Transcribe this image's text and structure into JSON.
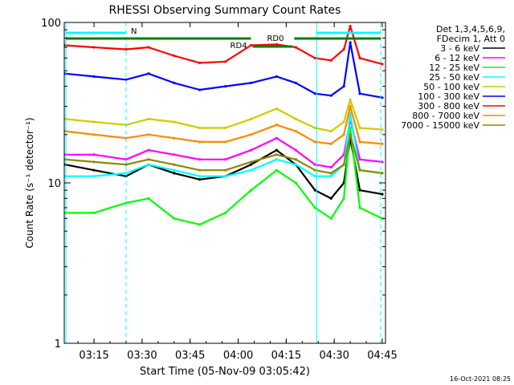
{
  "chart_data": {
    "type": "line",
    "title": "RHESSI Observing Summary Count Rates",
    "xlabel": "Start Time (05-Nov-09 03:05:42)",
    "ylabel": "Count Rate (s⁻¹ detector⁻¹)",
    "yscale": "log",
    "ylim": [
      1,
      100
    ],
    "xlim": [
      "03:05:42",
      "04:46:00"
    ],
    "xticks": [
      "03:15",
      "03:30",
      "03:45",
      "04:00",
      "04:15",
      "04:30",
      "04:45"
    ],
    "yticks": [
      "1",
      "10",
      "100"
    ],
    "grid": false,
    "legend_position": "top-right",
    "legend_header": [
      "Det 1,3,4,5,6,9,",
      "FDecim 1, Att 0"
    ],
    "series": [
      {
        "name": "3 - 6 keV",
        "color": "#000000",
        "x": [
          "03:06",
          "03:15",
          "03:25",
          "03:32",
          "03:40",
          "03:48",
          "03:56",
          "04:04",
          "04:12",
          "04:18",
          "04:24",
          "04:29",
          "04:33",
          "04:35",
          "04:38",
          "04:45"
        ],
        "values": [
          13,
          12,
          11,
          13,
          11.5,
          10.5,
          11,
          13,
          16,
          13,
          9,
          8,
          10,
          19,
          9,
          8.5
        ]
      },
      {
        "name": "6 - 12 keV",
        "color": "#ff00ff",
        "x": [
          "03:06",
          "03:15",
          "03:25",
          "03:32",
          "03:40",
          "03:48",
          "03:56",
          "04:04",
          "04:12",
          "04:18",
          "04:24",
          "04:29",
          "04:33",
          "04:35",
          "04:38",
          "04:45"
        ],
        "values": [
          15,
          15,
          14,
          16,
          15,
          14,
          14,
          16,
          19,
          16,
          13,
          12.5,
          15,
          25,
          14,
          13.5
        ]
      },
      {
        "name": "12 - 25 keV",
        "color": "#00ff00",
        "x": [
          "03:06",
          "03:15",
          "03:25",
          "03:32",
          "03:40",
          "03:48",
          "03:56",
          "04:04",
          "04:12",
          "04:18",
          "04:24",
          "04:29",
          "04:33",
          "04:35",
          "04:38",
          "04:45"
        ],
        "values": [
          6.5,
          6.5,
          7.5,
          8,
          6,
          5.5,
          6.5,
          9,
          12,
          10,
          7,
          6,
          8,
          22,
          7,
          6
        ]
      },
      {
        "name": "25 - 50 keV",
        "color": "#00ffff",
        "x": [
          "03:06",
          "03:15",
          "03:25",
          "03:32",
          "03:40",
          "03:48",
          "03:56",
          "04:04",
          "04:12",
          "04:18",
          "04:24",
          "04:29",
          "04:33",
          "04:35",
          "04:38",
          "04:45"
        ],
        "values": [
          11,
          11,
          11.5,
          13,
          12,
          11,
          11,
          12,
          14,
          13,
          11,
          11,
          13,
          27,
          12,
          11.5
        ]
      },
      {
        "name": "50 - 100 keV",
        "color": "#cccc00",
        "x": [
          "03:06",
          "03:15",
          "03:25",
          "03:32",
          "03:40",
          "03:48",
          "03:56",
          "04:04",
          "04:12",
          "04:18",
          "04:24",
          "04:29",
          "04:33",
          "04:35",
          "04:38",
          "04:45"
        ],
        "values": [
          25,
          24,
          23,
          25,
          24,
          22,
          22,
          25,
          29,
          25,
          22,
          21,
          24,
          33,
          22,
          21.5
        ]
      },
      {
        "name": "100 - 300 keV",
        "color": "#0000ff",
        "x": [
          "03:06",
          "03:15",
          "03:25",
          "03:32",
          "03:40",
          "03:48",
          "03:56",
          "04:04",
          "04:12",
          "04:18",
          "04:24",
          "04:29",
          "04:33",
          "04:35",
          "04:38",
          "04:45"
        ],
        "values": [
          48,
          46,
          44,
          48,
          42,
          38,
          40,
          42,
          46,
          42,
          36,
          35,
          40,
          75,
          36,
          34
        ]
      },
      {
        "name": "300 - 800 keV",
        "color": "#ff0000",
        "x": [
          "03:06",
          "03:15",
          "03:25",
          "03:32",
          "03:40",
          "03:48",
          "03:56",
          "04:04",
          "04:12",
          "04:18",
          "04:24",
          "04:29",
          "04:33",
          "04:35",
          "04:38",
          "04:45"
        ],
        "values": [
          72,
          70,
          68,
          70,
          62,
          56,
          57,
          72,
          73,
          70,
          60,
          58,
          68,
          95,
          60,
          55
        ]
      },
      {
        "name": "800 - 7000 keV",
        "color": "#ff8800",
        "x": [
          "03:06",
          "03:15",
          "03:25",
          "03:32",
          "03:40",
          "03:48",
          "03:56",
          "04:04",
          "04:12",
          "04:18",
          "04:24",
          "04:29",
          "04:33",
          "04:35",
          "04:38",
          "04:45"
        ],
        "values": [
          21,
          20,
          19,
          20,
          19,
          18,
          18,
          20,
          23,
          21,
          18,
          17.5,
          20,
          30,
          18,
          17.5
        ]
      },
      {
        "name": "7000 - 15000 keV",
        "color": "#888800",
        "x": [
          "03:06",
          "03:15",
          "03:25",
          "03:32",
          "03:40",
          "03:48",
          "03:56",
          "04:04",
          "04:12",
          "04:18",
          "04:24",
          "04:29",
          "04:33",
          "04:35",
          "04:38",
          "04:45"
        ],
        "values": [
          14,
          13.5,
          13,
          14,
          13,
          12,
          12,
          13.5,
          15,
          14,
          12,
          11.5,
          13,
          20,
          12,
          11.5
        ]
      }
    ],
    "annotations": {
      "night_label": "N",
      "rd0_label": "RD0",
      "rd4_label": "RD4",
      "night_color": "#00ffff",
      "rd_color": "#008000",
      "timestamp": "16-Oct-2021 08:25"
    }
  }
}
